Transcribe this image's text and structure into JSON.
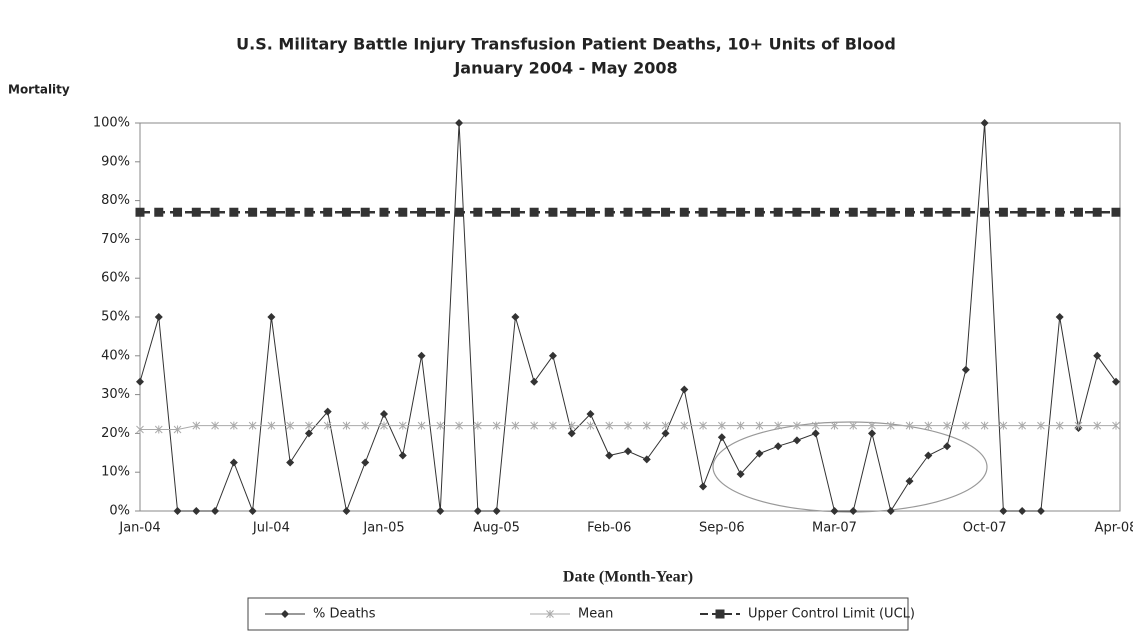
{
  "chart_data": {
    "type": "line",
    "title": "U.S. Military Battle Injury Transfusion Patient Deaths, 10+ Units of Blood",
    "subtitle": "January 2004 - May 2008",
    "y_label": "Mortality",
    "x_label": "Date (Month-Year)",
    "categories": [
      "Jan-04",
      null,
      null,
      null,
      null,
      null,
      null,
      "Jul-04",
      null,
      null,
      null,
      null,
      null,
      "Jan-05",
      null,
      null,
      null,
      null,
      null,
      "Aug-05",
      null,
      null,
      null,
      null,
      null,
      "Feb-06",
      null,
      null,
      null,
      null,
      null,
      "Sep-06",
      null,
      null,
      null,
      null,
      null,
      "Mar-07",
      null,
      null,
      null,
      null,
      null,
      null,
      null,
      "Oct-07",
      null,
      null,
      null,
      null,
      null,
      null,
      "Apr-08"
    ],
    "series": [
      {
        "name": "% Deaths",
        "color": "#333333",
        "marker": "diamond",
        "dash": false,
        "values": [
          33.3,
          50,
          0,
          0,
          0,
          12.5,
          0,
          50,
          12.5,
          20,
          25.6,
          0,
          12.5,
          25,
          14.3,
          40,
          0,
          100,
          0,
          0,
          50,
          33.3,
          40,
          20,
          25,
          14.3,
          15.4,
          13.3,
          20,
          31.3,
          6.3,
          19,
          9.5,
          14.8,
          16.7,
          18.2,
          20,
          0,
          0,
          20,
          0,
          7.7,
          14.3,
          16.7,
          36.4,
          100,
          0,
          0,
          0,
          50,
          21.4,
          40,
          33.3
        ]
      },
      {
        "name": "Mean",
        "color": "#aaaaaa",
        "marker": "cross",
        "dash": false,
        "values": [
          21,
          21,
          21,
          22,
          22,
          22,
          22,
          22,
          22,
          22,
          22,
          22,
          22,
          22,
          22,
          22,
          22,
          22,
          22,
          22,
          22,
          22,
          22,
          22,
          22,
          22,
          22,
          22,
          22,
          22,
          22,
          22,
          22,
          22,
          22,
          22,
          22,
          22,
          22,
          22,
          22,
          22,
          22,
          22,
          22,
          22,
          22,
          22,
          22,
          22,
          22,
          22,
          22
        ]
      },
      {
        "name": "Upper Control Limit (UCL)",
        "color": "#333333",
        "marker": "square",
        "dash": true,
        "values": [
          77,
          77,
          77,
          77,
          77,
          77,
          77,
          77,
          77,
          77,
          77,
          77,
          77,
          77,
          77,
          77,
          77,
          77,
          77,
          77,
          77,
          77,
          77,
          77,
          77,
          77,
          77,
          77,
          77,
          77,
          77,
          77,
          77,
          77,
          77,
          77,
          77,
          77,
          77,
          77,
          77,
          77,
          77,
          77,
          77,
          77,
          77,
          77,
          77,
          77,
          77,
          77,
          77
        ]
      }
    ],
    "ylim": [
      0,
      100
    ],
    "yticks": [
      {
        "value": 0,
        "label": "0%"
      },
      {
        "value": 10,
        "label": "10%"
      },
      {
        "value": 20,
        "label": "20%"
      },
      {
        "value": 30,
        "label": "30%"
      },
      {
        "value": 40,
        "label": "40%"
      },
      {
        "value": 50,
        "label": "50%"
      },
      {
        "value": 60,
        "label": "60%"
      },
      {
        "value": 70,
        "label": "70%"
      },
      {
        "value": 80,
        "label": "80%"
      },
      {
        "value": 90,
        "label": "90%"
      },
      {
        "value": 100,
        "label": "100%"
      }
    ],
    "grid": false,
    "legend": "bottom"
  }
}
